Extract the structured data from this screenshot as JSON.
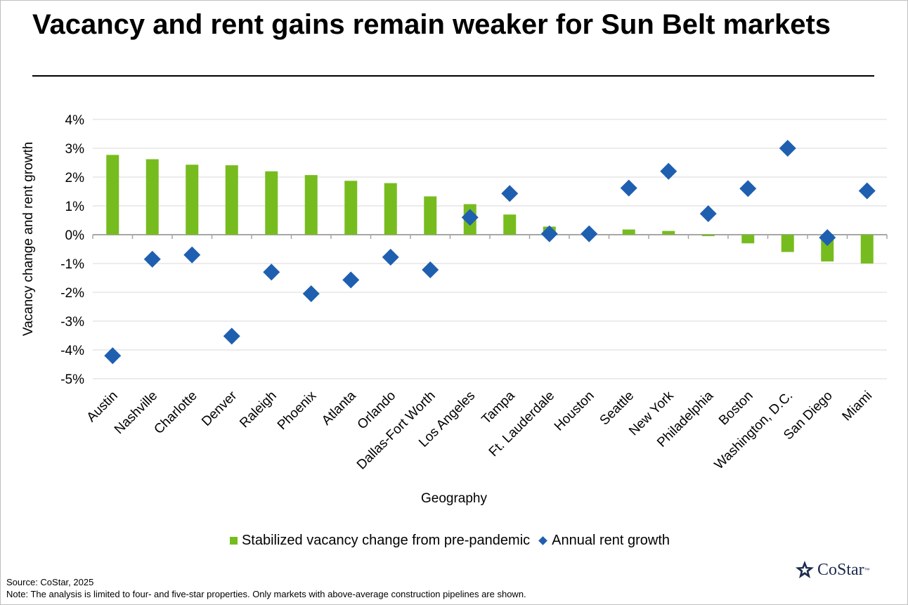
{
  "title": "Vacancy and rent gains remain weaker for Sun Belt markets",
  "footer": {
    "source": "Source: CoStar, 2025",
    "note": "Note: The analysis is limited to four- and five-star properties. Only markets with above-average construction pipelines are shown."
  },
  "logo": {
    "text": "CoStar",
    "tm": "™",
    "icon": "costar-star-icon"
  },
  "colors": {
    "bar": "#77bc1f",
    "marker": "#1f5fb0",
    "grid": "#d9d9d9",
    "zero_line": "#a6a6a6"
  },
  "chart_data": {
    "type": "bar",
    "categories": [
      "Austin",
      "Nashville",
      "Charlotte",
      "Denver",
      "Raleigh",
      "Phoenix",
      "Atlanta",
      "Orlando",
      "Dallas-Fort Worth",
      "Los Angeles",
      "Tampa",
      "Ft. Lauderdale",
      "Houston",
      "Seattle",
      "New York",
      "Philadelphia",
      "Boston",
      "Washington, D.C.",
      "San Diego",
      "Miami"
    ],
    "series": [
      {
        "name": "Stabilized vacancy change from pre-pandemic",
        "type": "bar",
        "values": [
          2.77,
          2.62,
          2.43,
          2.41,
          2.2,
          2.07,
          1.87,
          1.79,
          1.33,
          1.06,
          0.7,
          0.28,
          0.03,
          0.18,
          0.13,
          -0.05,
          -0.3,
          -0.6,
          -0.93,
          -1.0
        ]
      },
      {
        "name": "Annual rent growth",
        "type": "scatter",
        "values": [
          -4.2,
          -0.85,
          -0.7,
          -3.52,
          -1.3,
          -2.05,
          -1.57,
          -0.78,
          -1.22,
          0.6,
          1.43,
          0.03,
          0.03,
          1.62,
          2.2,
          0.73,
          1.6,
          3.0,
          -0.1,
          1.52
        ]
      }
    ],
    "ylabel": "Vacancy change and rent growth",
    "xlabel": "Geography",
    "ylim": [
      -5,
      4
    ],
    "yticks": [
      "4%",
      "3%",
      "2%",
      "1%",
      "0%",
      "-1%",
      "-2%",
      "-3%",
      "-4%",
      "-5%"
    ],
    "ytick_values": [
      4,
      3,
      2,
      1,
      0,
      -1,
      -2,
      -3,
      -4,
      -5
    ],
    "grid": true,
    "legend_position": "bottom"
  }
}
